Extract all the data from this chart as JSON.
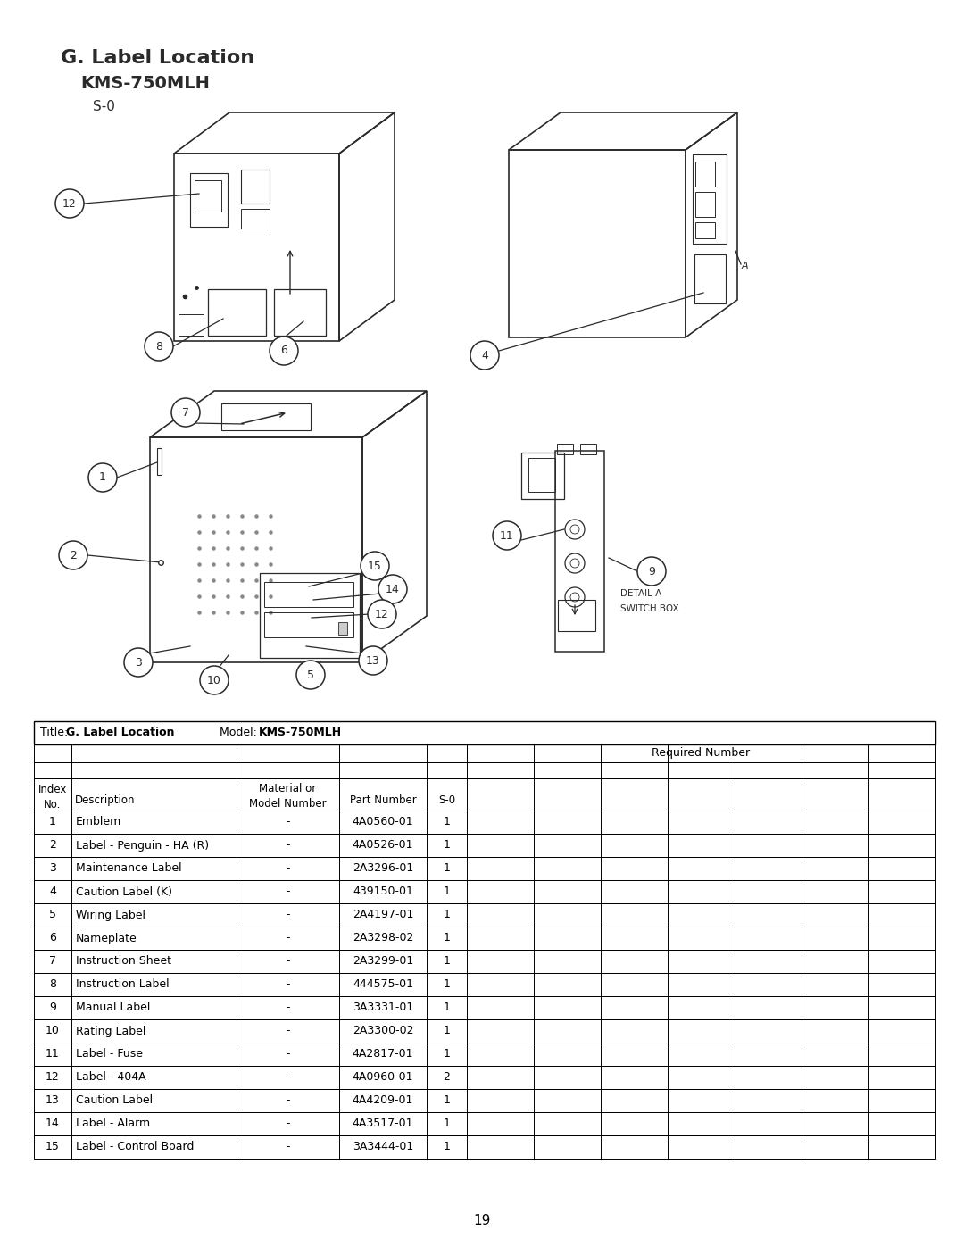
{
  "title_line1": "G. Label Location",
  "title_line2": "KMS-750MLH",
  "title_line3": "S-0",
  "page_number": "19",
  "bg_color": "#ffffff",
  "text_color": "#1a1a1a",
  "font_size_title": 16,
  "font_size_subtitle": 14,
  "font_size_s0": 11,
  "font_size_table": 9,
  "rows": [
    [
      1,
      "Emblem",
      "-",
      "4A0560-01",
      "1"
    ],
    [
      2,
      "Label - Penguin - HA (R)",
      "-",
      "4A0526-01",
      "1"
    ],
    [
      3,
      "Maintenance Label",
      "-",
      "2A3296-01",
      "1"
    ],
    [
      4,
      "Caution Label (K)",
      "-",
      "439150-01",
      "1"
    ],
    [
      5,
      "Wiring Label",
      "-",
      "2A4197-01",
      "1"
    ],
    [
      6,
      "Nameplate",
      "-",
      "2A3298-02",
      "1"
    ],
    [
      7,
      "Instruction Sheet",
      "-",
      "2A3299-01",
      "1"
    ],
    [
      8,
      "Instruction Label",
      "-",
      "444575-01",
      "1"
    ],
    [
      9,
      "Manual Label",
      "-",
      "3A3331-01",
      "1"
    ],
    [
      10,
      "Rating Label",
      "-",
      "2A3300-02",
      "1"
    ],
    [
      11,
      "Label - Fuse",
      "-",
      "4A2817-01",
      "1"
    ],
    [
      12,
      "Label - 404A",
      "-",
      "4A0960-01",
      "2"
    ],
    [
      13,
      "Caution Label",
      "-",
      "4A4209-01",
      "1"
    ],
    [
      14,
      "Label - Alarm",
      "-",
      "4A3517-01",
      "1"
    ],
    [
      15,
      "Label - Control Board",
      "-",
      "3A3444-01",
      "1"
    ]
  ]
}
